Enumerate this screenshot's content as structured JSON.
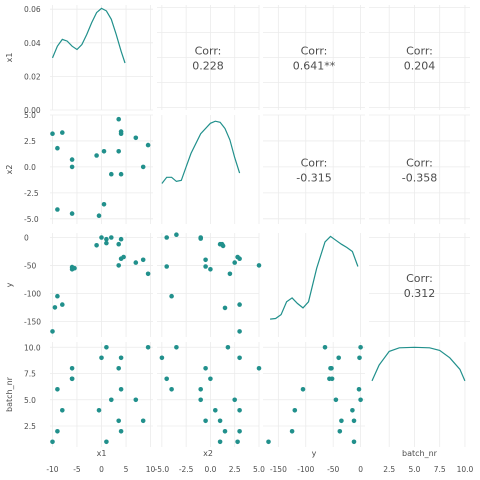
{
  "chart_data": {
    "type": "scatter",
    "layout": "pairs plot (scatterplot matrix)",
    "variables": [
      "x1",
      "x2",
      "y",
      "batch_nr"
    ],
    "colors": {
      "points": "#21908C",
      "panel_bg": "#FFFFFF",
      "grid": "#EBEBEB",
      "text": "#4D4D4D"
    },
    "axes": {
      "x1": {
        "range": [
          -10.5,
          10.5
        ],
        "ticks": [
          -10,
          -5,
          0,
          5,
          10
        ],
        "tick_labels": [
          "-10",
          "-5",
          "0",
          "5",
          "10"
        ]
      },
      "x2": {
        "range": [
          -5.5,
          5.0
        ],
        "ticks": [
          -5,
          -2.5,
          0,
          2.5,
          5
        ],
        "tick_labels": [
          "-5.0",
          "-2.5",
          "0.0",
          "2.5",
          "5.0"
        ]
      },
      "y": {
        "range": [
          -178,
          8
        ],
        "ticks": [
          0,
          -50,
          -100,
          -150
        ],
        "tick_labels": [
          "0",
          "-50",
          "-100",
          "-150"
        ]
      },
      "batch_nr": {
        "range": [
          0.5,
          10.5
        ],
        "ticks": [
          2.5,
          5,
          7.5,
          10
        ],
        "tick_labels": [
          "2.5",
          "5.0",
          "7.5",
          "10.0"
        ]
      }
    },
    "density_axis": {
      "range": [
        0,
        0.0625
      ],
      "ticks": [
        0,
        0.02,
        0.04,
        0.06
      ],
      "tick_labels": [
        "0.00",
        "0.02",
        "0.04",
        "0.06"
      ]
    },
    "densities": {
      "x1": [
        [
          -10,
          0.031
        ],
        [
          -9,
          0.038
        ],
        [
          -8,
          0.042
        ],
        [
          -7,
          0.041
        ],
        [
          -6,
          0.038
        ],
        [
          -5,
          0.036
        ],
        [
          -4,
          0.039
        ],
        [
          -3,
          0.045
        ],
        [
          -2,
          0.052
        ],
        [
          -1,
          0.058
        ],
        [
          0,
          0.0605
        ],
        [
          1,
          0.059
        ],
        [
          2,
          0.054
        ],
        [
          3,
          0.045
        ],
        [
          4,
          0.035
        ],
        [
          4.8,
          0.028
        ]
      ],
      "x2": [
        [
          -5.0,
          -1.6
        ],
        [
          -4.5,
          -1.0
        ],
        [
          -4.0,
          -1.0
        ],
        [
          -3.5,
          -1.4
        ],
        [
          -3.0,
          -1.3
        ],
        [
          -2.5,
          0.0
        ],
        [
          -2.0,
          1.3
        ],
        [
          -1.0,
          3.2
        ],
        [
          0.0,
          4.2
        ],
        [
          0.5,
          4.4
        ],
        [
          1.0,
          4.3
        ],
        [
          1.5,
          3.7
        ],
        [
          2.0,
          2.6
        ],
        [
          2.5,
          0.9
        ],
        [
          3.0,
          -0.6
        ]
      ],
      "y": [
        [
          -165,
          -146
        ],
        [
          -155,
          -145
        ],
        [
          -145,
          -138
        ],
        [
          -135,
          -115
        ],
        [
          -125,
          -108
        ],
        [
          -115,
          -118
        ],
        [
          -105,
          -126
        ],
        [
          -95,
          -115
        ],
        [
          -80,
          -55
        ],
        [
          -65,
          -8
        ],
        [
          -55,
          2
        ],
        [
          -45,
          -5
        ],
        [
          -35,
          -12
        ],
        [
          -25,
          -18
        ],
        [
          -15,
          -25
        ],
        [
          -5,
          -52
        ]
      ],
      "batch_nr": [
        [
          0.8,
          6.8
        ],
        [
          1.5,
          8.3
        ],
        [
          2.5,
          9.6
        ],
        [
          3.5,
          9.95
        ],
        [
          5.0,
          10.0
        ],
        [
          6.5,
          9.95
        ],
        [
          7.5,
          9.7
        ],
        [
          8.5,
          9.0
        ],
        [
          9.5,
          7.9
        ],
        [
          10.0,
          6.8
        ]
      ]
    },
    "observations": {
      "x1": [
        -10,
        -9.5,
        -9,
        -8.5,
        -7,
        -7,
        -6.5,
        -6,
        -3,
        -2,
        -1.5,
        -1,
        -0.5,
        0.5,
        2.5,
        3.5,
        4,
        4.5,
        5,
        7.5,
        9,
        10
      ],
      "x2": [
        -4.8,
        -5.0,
        -4.2,
        -4.0,
        -3.8,
        -2.5,
        -1.8,
        -1.5,
        -0.8,
        -0.5,
        -0.3,
        0.0,
        0.8,
        1.2,
        1.5,
        2.0,
        2.5,
        2.6,
        2.7,
        2.8,
        3.0,
        5.0
      ],
      "y": [
        -165,
        -125,
        -118,
        -105,
        -55,
        -53,
        -50,
        -45,
        -40,
        -38,
        -35,
        -30,
        -25,
        -15,
        -12,
        -8,
        -5,
        -3,
        -2,
        -1,
        0,
        0
      ],
      "batch_nr": [
        1,
        1,
        2,
        2,
        3,
        3,
        4,
        4,
        5,
        5,
        6,
        6,
        7,
        7,
        8,
        8,
        9,
        9,
        9,
        10,
        10,
        10
      ]
    },
    "scatter_panels": [
      {
        "x": "x1",
        "y": "x2",
        "points": [
          [
            -10,
            3.2
          ],
          [
            -9,
            1.8
          ],
          [
            -8,
            3.3
          ],
          [
            -6,
            0.7
          ],
          [
            -6,
            0.0
          ],
          [
            -1,
            1.1
          ],
          [
            0.5,
            1.5
          ],
          [
            2,
            -0.7
          ],
          [
            3.5,
            4.6
          ],
          [
            3.5,
            1.5
          ],
          [
            4,
            -0.7
          ],
          [
            4,
            3.4
          ],
          [
            4,
            3.2
          ],
          [
            7,
            2.8
          ],
          [
            8.5,
            0.0
          ],
          [
            9.5,
            2.1
          ],
          [
            -9,
            -4.1
          ],
          [
            -6,
            -4.5
          ],
          [
            0.5,
            -3.6
          ],
          [
            -0.5,
            -4.7
          ]
        ]
      },
      {
        "x": "x1",
        "y": "y",
        "points": [
          [
            -10,
            -168
          ],
          [
            -9.5,
            -125
          ],
          [
            -9,
            -105
          ],
          [
            -8,
            -120
          ],
          [
            -6,
            -53
          ],
          [
            -6,
            -57
          ],
          [
            -5.5,
            -55
          ],
          [
            -1,
            -14
          ],
          [
            0,
            0
          ],
          [
            1,
            -3
          ],
          [
            1,
            -10
          ],
          [
            2,
            0
          ],
          [
            3.5,
            -50
          ],
          [
            3.5,
            -12
          ],
          [
            4,
            -3
          ],
          [
            4,
            -38
          ],
          [
            4.5,
            -35
          ],
          [
            7,
            -45
          ],
          [
            8.5,
            -40
          ],
          [
            9.5,
            -65
          ]
        ]
      },
      {
        "x": "x2",
        "y": "y",
        "points": [
          [
            -4.5,
            0
          ],
          [
            -4.5,
            -52
          ],
          [
            -4,
            -105
          ],
          [
            -3.5,
            5
          ],
          [
            -1,
            0
          ],
          [
            -1,
            -2
          ],
          [
            -0.5,
            -40
          ],
          [
            -0.5,
            -52
          ],
          [
            0,
            -57
          ],
          [
            1,
            -12
          ],
          [
            1.2,
            -12
          ],
          [
            1.3,
            -15
          ],
          [
            1.5,
            -126
          ],
          [
            2,
            -65
          ],
          [
            2.5,
            -45
          ],
          [
            2.8,
            -35
          ],
          [
            3,
            -38
          ],
          [
            3,
            -120
          ],
          [
            3,
            -168
          ],
          [
            5,
            -50
          ]
        ]
      },
      {
        "x": "x1",
        "y": "batch_nr",
        "points": [
          [
            -10,
            1
          ],
          [
            -9,
            2
          ],
          [
            -9,
            6
          ],
          [
            -8,
            4
          ],
          [
            -6,
            7
          ],
          [
            -6,
            8
          ],
          [
            -6,
            7
          ],
          [
            -0.5,
            4
          ],
          [
            0,
            9
          ],
          [
            1,
            10
          ],
          [
            1,
            1
          ],
          [
            2,
            5
          ],
          [
            3.5,
            3
          ],
          [
            3.5,
            8
          ],
          [
            4,
            6
          ],
          [
            4,
            9
          ],
          [
            4,
            2
          ],
          [
            7,
            5
          ],
          [
            8.5,
            3
          ],
          [
            9.5,
            10
          ]
        ]
      },
      {
        "x": "x2",
        "y": "batch_nr",
        "points": [
          [
            -5,
            9
          ],
          [
            -4.5,
            7
          ],
          [
            -4,
            6
          ],
          [
            -3.5,
            10
          ],
          [
            -1,
            5
          ],
          [
            -1,
            6
          ],
          [
            -0.5,
            3
          ],
          [
            -0.5,
            8
          ],
          [
            0,
            7
          ],
          [
            0.5,
            4
          ],
          [
            1,
            1
          ],
          [
            1,
            3
          ],
          [
            1.5,
            2
          ],
          [
            1.8,
            10
          ],
          [
            2.5,
            5
          ],
          [
            2.8,
            1
          ],
          [
            3,
            4
          ],
          [
            3,
            2
          ],
          [
            3,
            9
          ],
          [
            5,
            8
          ]
        ]
      },
      {
        "x": "y",
        "y": "batch_nr",
        "points": [
          [
            -168,
            1
          ],
          [
            -125,
            2
          ],
          [
            -120,
            4
          ],
          [
            -105,
            6
          ],
          [
            -65,
            10
          ],
          [
            -57,
            7
          ],
          [
            -55,
            8
          ],
          [
            -53,
            8
          ],
          [
            -52,
            7
          ],
          [
            -45,
            5
          ],
          [
            -40,
            9
          ],
          [
            -38,
            2
          ],
          [
            -35,
            3
          ],
          [
            -15,
            4
          ],
          [
            -12,
            3
          ],
          [
            -12,
            1
          ],
          [
            -3,
            6
          ],
          [
            -2,
            9
          ],
          [
            0,
            5
          ],
          [
            0,
            10
          ]
        ]
      }
    ],
    "correlations": [
      {
        "row": "x1",
        "col": "x2",
        "label": "Corr:",
        "value": "0.228"
      },
      {
        "row": "x1",
        "col": "y",
        "label": "Corr:",
        "value": "0.641**"
      },
      {
        "row": "x1",
        "col": "batch_nr",
        "label": "Corr:",
        "value": "0.204"
      },
      {
        "row": "x2",
        "col": "y",
        "label": "Corr:",
        "value": "-0.315"
      },
      {
        "row": "x2",
        "col": "batch_nr",
        "label": "Corr:",
        "value": "-0.358"
      },
      {
        "row": "y",
        "col": "batch_nr",
        "label": "Corr:",
        "value": "0.312"
      }
    ],
    "grid": true
  }
}
